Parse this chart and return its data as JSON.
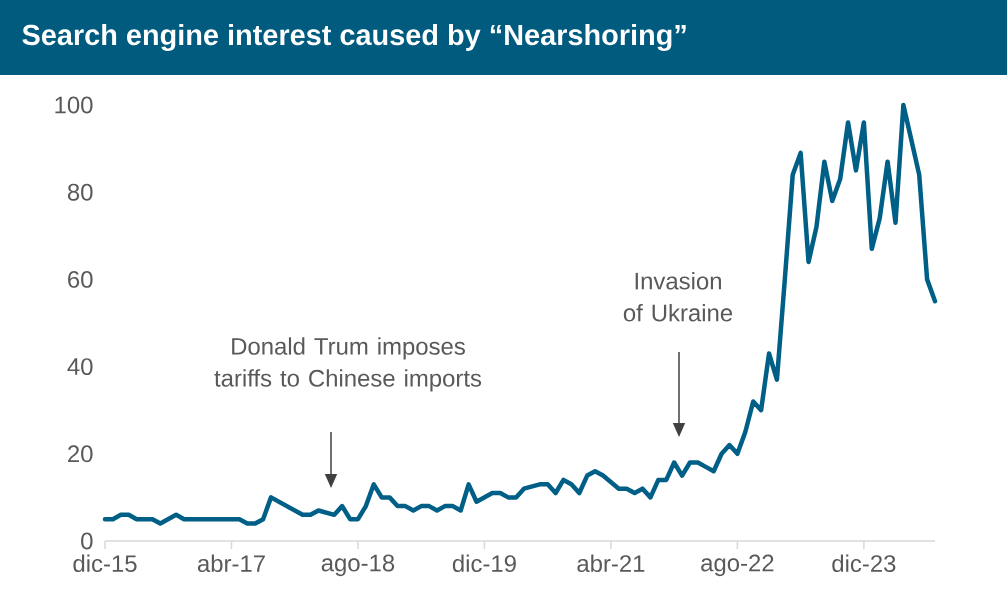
{
  "chart_data": {
    "type": "line",
    "title": "Search engine interest caused by “Nearshoring”",
    "x": [
      "2015-12",
      "2016-01",
      "2016-02",
      "2016-03",
      "2016-04",
      "2016-06",
      "2016-07",
      "2016-09",
      "2016-10",
      "2017-05",
      "2017-06",
      "2017-07",
      "2017-08",
      "2017-09",
      "2017-11",
      "2018-01",
      "2018-02",
      "2018-03",
      "2018-05",
      "2018-06",
      "2018-07",
      "2018-08",
      "2018-09",
      "2018-10",
      "2018-11",
      "2018-12",
      "2019-01",
      "2019-02",
      "2019-03",
      "2019-04",
      "2019-05",
      "2019-06",
      "2019-07",
      "2019-08",
      "2019-09",
      "2019-10",
      "2019-11",
      "2020-01",
      "2020-02",
      "2020-03",
      "2020-04",
      "2020-05",
      "2020-07",
      "2020-08",
      "2020-09",
      "2020-10",
      "2020-11",
      "2020-12",
      "2021-01",
      "2021-02",
      "2021-03",
      "2021-05",
      "2021-06",
      "2021-07",
      "2021-08",
      "2021-09",
      "2021-10",
      "2021-11",
      "2021-12",
      "2022-01",
      "2022-02",
      "2022-03",
      "2022-04",
      "2022-05",
      "2022-06",
      "2022-07",
      "2022-08",
      "2022-09",
      "2022-10",
      "2022-11",
      "2022-12",
      "2023-01",
      "2023-02",
      "2023-03",
      "2023-04",
      "2023-05",
      "2023-06",
      "2023-07",
      "2023-08",
      "2023-09",
      "2023-10",
      "2023-11",
      "2023-12",
      "2024-01",
      "2024-02",
      "2024-03",
      "2024-04",
      "2024-05",
      "2024-06",
      "2024-07",
      "2024-08",
      "2024-09"
    ],
    "values": [
      5,
      5,
      6,
      6,
      5,
      5,
      4,
      6,
      5,
      5,
      4,
      4,
      5,
      10,
      8,
      6,
      6,
      7,
      6,
      8,
      5,
      5,
      8,
      13,
      10,
      10,
      8,
      8,
      7,
      8,
      8,
      7,
      8,
      8,
      7,
      13,
      9,
      11,
      11,
      10,
      10,
      12,
      13,
      13,
      11,
      14,
      13,
      11,
      15,
      16,
      15,
      12,
      12,
      11,
      12,
      10,
      14,
      14,
      18,
      15,
      18,
      18,
      17,
      16,
      20,
      22,
      20,
      25,
      32,
      30,
      43,
      37,
      60,
      84,
      89,
      64,
      72,
      87,
      78,
      83,
      96,
      85,
      96,
      67,
      74,
      87,
      73,
      100,
      92,
      84,
      60,
      55
    ],
    "color": "#005f86",
    "xlim": [
      "2015-12",
      "2024-09"
    ],
    "xticks": [
      {
        "value": "2015-12",
        "label": "dic-15"
      },
      {
        "value": "2017-04",
        "label": "abr-17"
      },
      {
        "value": "2018-08",
        "label": "ago-18"
      },
      {
        "value": "2019-12",
        "label": "dic-19"
      },
      {
        "value": "2021-04",
        "label": "abr-21"
      },
      {
        "value": "2022-08",
        "label": "ago-22"
      },
      {
        "value": "2023-12",
        "label": "dic-23"
      }
    ],
    "ylim": [
      0,
      100
    ],
    "yticks": [
      0,
      20,
      40,
      60,
      80,
      100
    ],
    "grid": false,
    "annotations": [
      "Donald Trum imposes tariffs to Chinese imports",
      "Invasion of Ukraine"
    ]
  }
}
